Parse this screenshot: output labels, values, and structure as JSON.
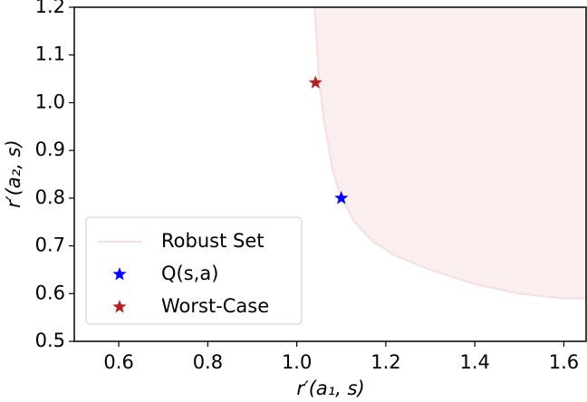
{
  "chart_data": {
    "type": "line",
    "xlabel": "r′(a₁, s)",
    "ylabel": "r′(a₂, s)",
    "xlim": [
      0.5,
      1.65
    ],
    "ylim": [
      0.5,
      1.2
    ],
    "xticks": [
      0.6,
      0.8,
      {
        "value": 1.0,
        "label": "1.0"
      },
      1.2,
      1.4,
      1.6
    ],
    "yticks": [
      0.5,
      0.6,
      0.7,
      0.8,
      0.9,
      {
        "value": 1.0,
        "label": "1.0"
      },
      1.1,
      1.2
    ],
    "legend": "lower left",
    "series": [
      {
        "name": "Robust Set",
        "color": "#f6dede",
        "fill": "#fbeeee",
        "x": [
          1.04,
          1.05,
          1.06,
          1.08,
          1.1,
          1.13,
          1.17,
          1.22,
          1.3,
          1.4,
          1.5,
          1.6,
          1.65
        ],
        "values": [
          1.2,
          1.05,
          0.97,
          0.86,
          0.8,
          0.75,
          0.71,
          0.68,
          0.65,
          0.62,
          0.6,
          0.59,
          0.59
        ]
      },
      {
        "name": "Q(s,a)",
        "color": "#0000ff",
        "marker": "star",
        "x": [
          1.1
        ],
        "values": [
          0.8
        ]
      },
      {
        "name": "Worst-Case",
        "color": "#b22222",
        "marker": "star",
        "x": [
          1.042
        ],
        "values": [
          1.042
        ]
      }
    ]
  }
}
